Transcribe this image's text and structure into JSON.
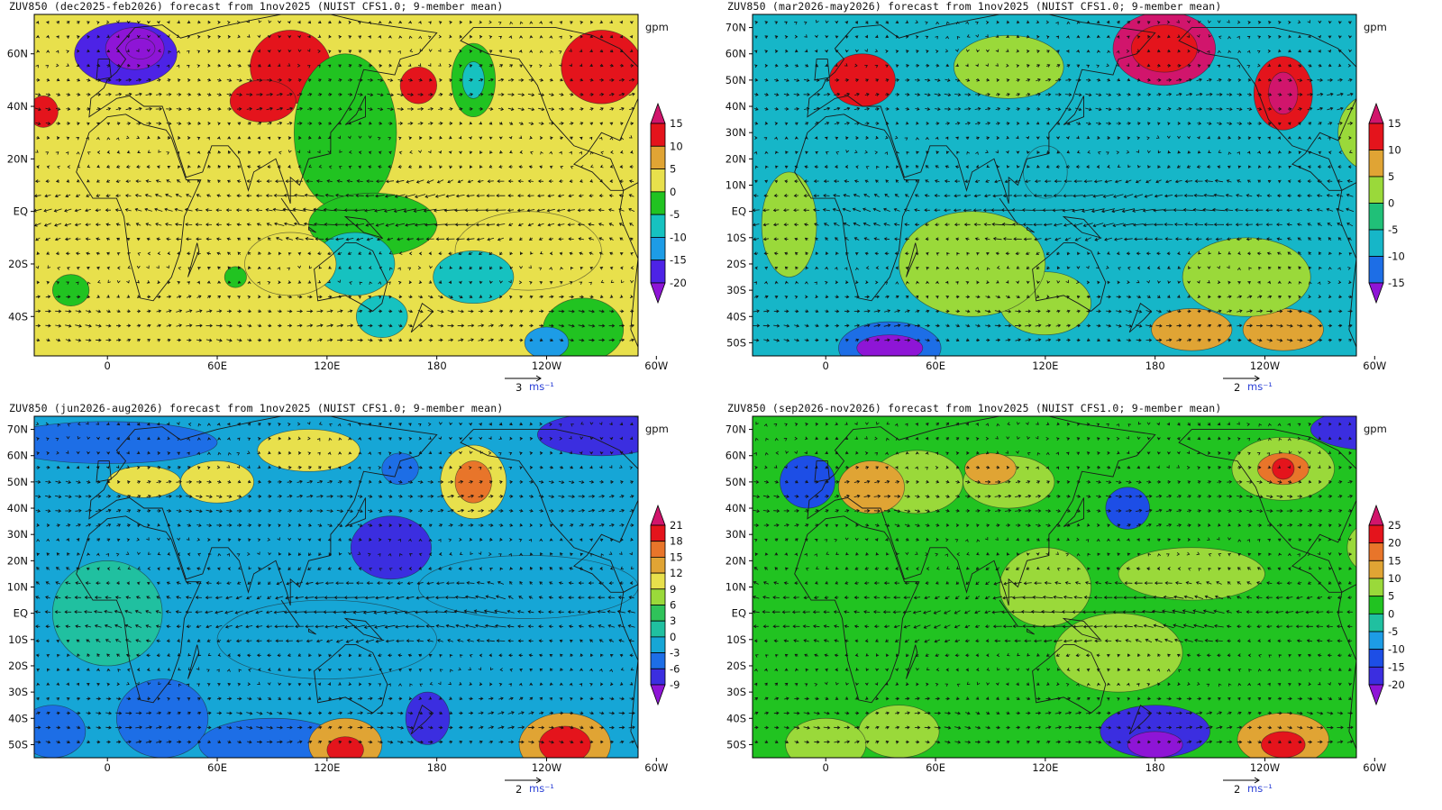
{
  "colors": {
    "land": "#1a1a1a",
    "vector": "#111111",
    "scale_label": "#2a3fd6"
  },
  "panels": [
    {
      "title": "ZUV850 (dec2025-feb2026) forecast from 1nov2025 (NUIST CFS1.0; 9-member mean)",
      "units": "gpm",
      "reference_vector": {
        "value": "3",
        "units": "ms⁻¹"
      },
      "chart_data": {
        "type": "heatmap",
        "title": "ZUV850 (dec2025-feb2026) forecast from 1nov2025 (NUIST CFS1.0; 9-member mean)",
        "field": "850 hPa geopotential height anomaly with wind vectors",
        "units": "gpm",
        "lon_range": [
          -40,
          290
        ],
        "lat_range": [
          -55,
          75
        ],
        "x_ticks": [
          "0",
          "60E",
          "120E",
          "180",
          "120W",
          "60W"
        ],
        "y_ticks": [
          "60N",
          "40N",
          "20N",
          "EQ",
          "20S",
          "40S"
        ],
        "colorbar_levels": [
          "15",
          "10",
          "5",
          "0",
          "-5",
          "-10",
          "-15",
          "-20"
        ],
        "colorbar_colors": [
          "#d1156c",
          "#e4141c",
          "#e0a434",
          "#e8e04c",
          "#21c321",
          "#16c2c0",
          "#1d9ce6",
          "#4d23e6",
          "#8e15d6"
        ],
        "background_level": "5"
      }
    },
    {
      "title": "ZUV850 (mar2026-may2026) forecast from 1nov2025 (NUIST CFS1.0; 9-member mean)",
      "units": "gpm",
      "reference_vector": {
        "value": "2",
        "units": "ms⁻¹"
      },
      "chart_data": {
        "type": "heatmap",
        "title": "ZUV850 (mar2026-may2026) forecast from 1nov2025 (NUIST CFS1.0; 9-member mean)",
        "field": "850 hPa geopotential height anomaly with wind vectors",
        "units": "gpm",
        "lon_range": [
          -40,
          290
        ],
        "lat_range": [
          -55,
          75
        ],
        "x_ticks": [
          "0",
          "60E",
          "120E",
          "180",
          "120W",
          "60W"
        ],
        "y_ticks": [
          "70N",
          "60N",
          "50N",
          "40N",
          "30N",
          "20N",
          "10N",
          "EQ",
          "10S",
          "20S",
          "30S",
          "40S",
          "50S"
        ],
        "colorbar_levels": [
          "15",
          "10",
          "5",
          "0",
          "-5",
          "-10",
          "-15"
        ],
        "colorbar_colors": [
          "#d1156c",
          "#e4141c",
          "#e0a434",
          "#9ad93a",
          "#20c078",
          "#16b6c8",
          "#1d6ee6",
          "#8e15d6"
        ],
        "background_level": "-5"
      }
    },
    {
      "title": "ZUV850 (jun2026-aug2026) forecast from 1nov2025 (NUIST CFS1.0; 9-member mean)",
      "units": "gpm",
      "reference_vector": {
        "value": "2",
        "units": "ms⁻¹"
      },
      "chart_data": {
        "type": "heatmap",
        "title": "ZUV850 (jun2026-aug2026) forecast from 1nov2025 (NUIST CFS1.0; 9-member mean)",
        "field": "850 hPa geopotential height anomaly with wind vectors",
        "units": "gpm",
        "lon_range": [
          -40,
          290
        ],
        "lat_range": [
          -55,
          75
        ],
        "x_ticks": [
          "0",
          "60E",
          "120E",
          "180",
          "120W",
          "60W"
        ],
        "y_ticks": [
          "70N",
          "60N",
          "50N",
          "40N",
          "30N",
          "20N",
          "10N",
          "EQ",
          "10S",
          "20S",
          "30S",
          "40S",
          "50S"
        ],
        "colorbar_levels": [
          "21",
          "18",
          "15",
          "12",
          "9",
          "6",
          "3",
          "0",
          "-3",
          "-6",
          "-9"
        ],
        "colorbar_colors": [
          "#d1156c",
          "#e4141c",
          "#e8752a",
          "#e0a434",
          "#e8e04c",
          "#9ad93a",
          "#2fc35a",
          "#20c0a0",
          "#16a6d6",
          "#1d6ee6",
          "#3b2ee0",
          "#8e15d6"
        ],
        "background_level": "0"
      }
    },
    {
      "title": "ZUV850 (sep2026-nov2026) forecast from 1nov2025 (NUIST CFS1.0; 9-member mean)",
      "units": "gpm",
      "reference_vector": {
        "value": "2",
        "units": "ms⁻¹"
      },
      "chart_data": {
        "type": "heatmap",
        "title": "ZUV850 (sep2026-nov2026) forecast from 1nov2025 (NUIST CFS1.0; 9-member mean)",
        "field": "850 hPa geopotential height anomaly with wind vectors",
        "units": "gpm",
        "lon_range": [
          -40,
          290
        ],
        "lat_range": [
          -55,
          75
        ],
        "x_ticks": [
          "0",
          "60E",
          "120E",
          "180",
          "120W",
          "60W"
        ],
        "y_ticks": [
          "70N",
          "60N",
          "50N",
          "40N",
          "30N",
          "20N",
          "10N",
          "EQ",
          "10S",
          "20S",
          "30S",
          "40S",
          "50S"
        ],
        "colorbar_levels": [
          "25",
          "20",
          "15",
          "10",
          "5",
          "0",
          "-5",
          "-10",
          "-15",
          "-20"
        ],
        "colorbar_colors": [
          "#d1156c",
          "#e4141c",
          "#e8752a",
          "#e0a434",
          "#9ad93a",
          "#21c321",
          "#20c0a0",
          "#1d9ce6",
          "#1d4ee6",
          "#3b2ee0",
          "#8e15d6"
        ],
        "background_level": "5"
      }
    }
  ]
}
